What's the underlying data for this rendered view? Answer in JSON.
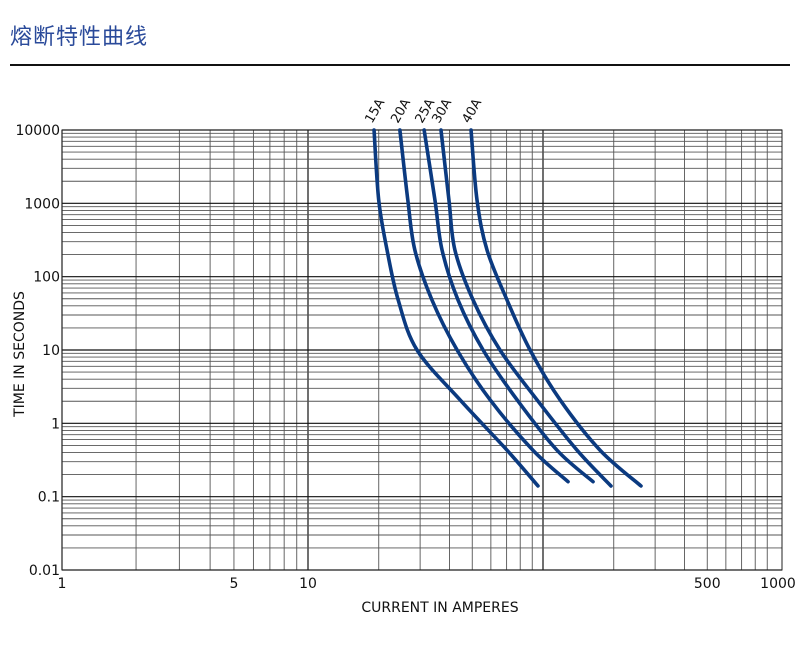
{
  "page": {
    "title": "熔断特性曲线",
    "title_color": "#2a4a9a"
  },
  "chart_data": {
    "type": "line",
    "title": "",
    "xlabel": "CURRENT IN AMPERES",
    "ylabel": "TIME IN SECONDS",
    "xscale": "log",
    "yscale": "log",
    "xlim": [
      1,
      1000
    ],
    "ylim": [
      0.01,
      10000
    ],
    "grid": true,
    "x_tick_labels": [
      "1",
      "5",
      "10",
      "500",
      "1000"
    ],
    "x_tick_values": [
      1,
      5,
      10,
      500,
      1000
    ],
    "y_tick_labels": [
      "10000",
      "1000",
      "100",
      "10",
      "1",
      "0.1",
      "0.01"
    ],
    "y_tick_values": [
      10000,
      1000,
      100,
      10,
      1,
      0.1,
      0.01
    ],
    "series_color": "#0b3a80",
    "series": [
      {
        "name": "15A",
        "x": [
          19.1,
          20.0,
          21.7,
          24.2,
          29.1,
          44.3,
          70.3,
          95.2
        ],
        "y": [
          10000,
          1100,
          230,
          48,
          10,
          2.1,
          0.43,
          0.14
        ]
      },
      {
        "name": "20A",
        "x": [
          24.6,
          26.6,
          28.5,
          33.7,
          43.1,
          59.5,
          90.6,
          127.8
        ],
        "y": [
          10000,
          1100,
          230,
          48,
          10,
          2.1,
          0.43,
          0.16
        ]
      },
      {
        "name": "25A",
        "x": [
          31.2,
          34.7,
          37.2,
          43.5,
          55.6,
          77.5,
          114.7,
          163.3
        ],
        "y": [
          10000,
          1100,
          230,
          48,
          10,
          2.1,
          0.43,
          0.16
        ]
      },
      {
        "name": "30A",
        "x": [
          36.8,
          39.8,
          42.2,
          50.4,
          65.6,
          94.2,
          139.6,
          194.7
        ],
        "y": [
          10000,
          1100,
          230,
          48,
          10,
          2.1,
          0.43,
          0.14
        ]
      },
      {
        "name": "40A",
        "x": [
          49.4,
          52.4,
          57.8,
          70.3,
          88.1,
          118.1,
          174.9,
          261.2
        ],
        "y": [
          10000,
          1100,
          230,
          48,
          10,
          2.1,
          0.43,
          0.14
        ]
      }
    ]
  }
}
